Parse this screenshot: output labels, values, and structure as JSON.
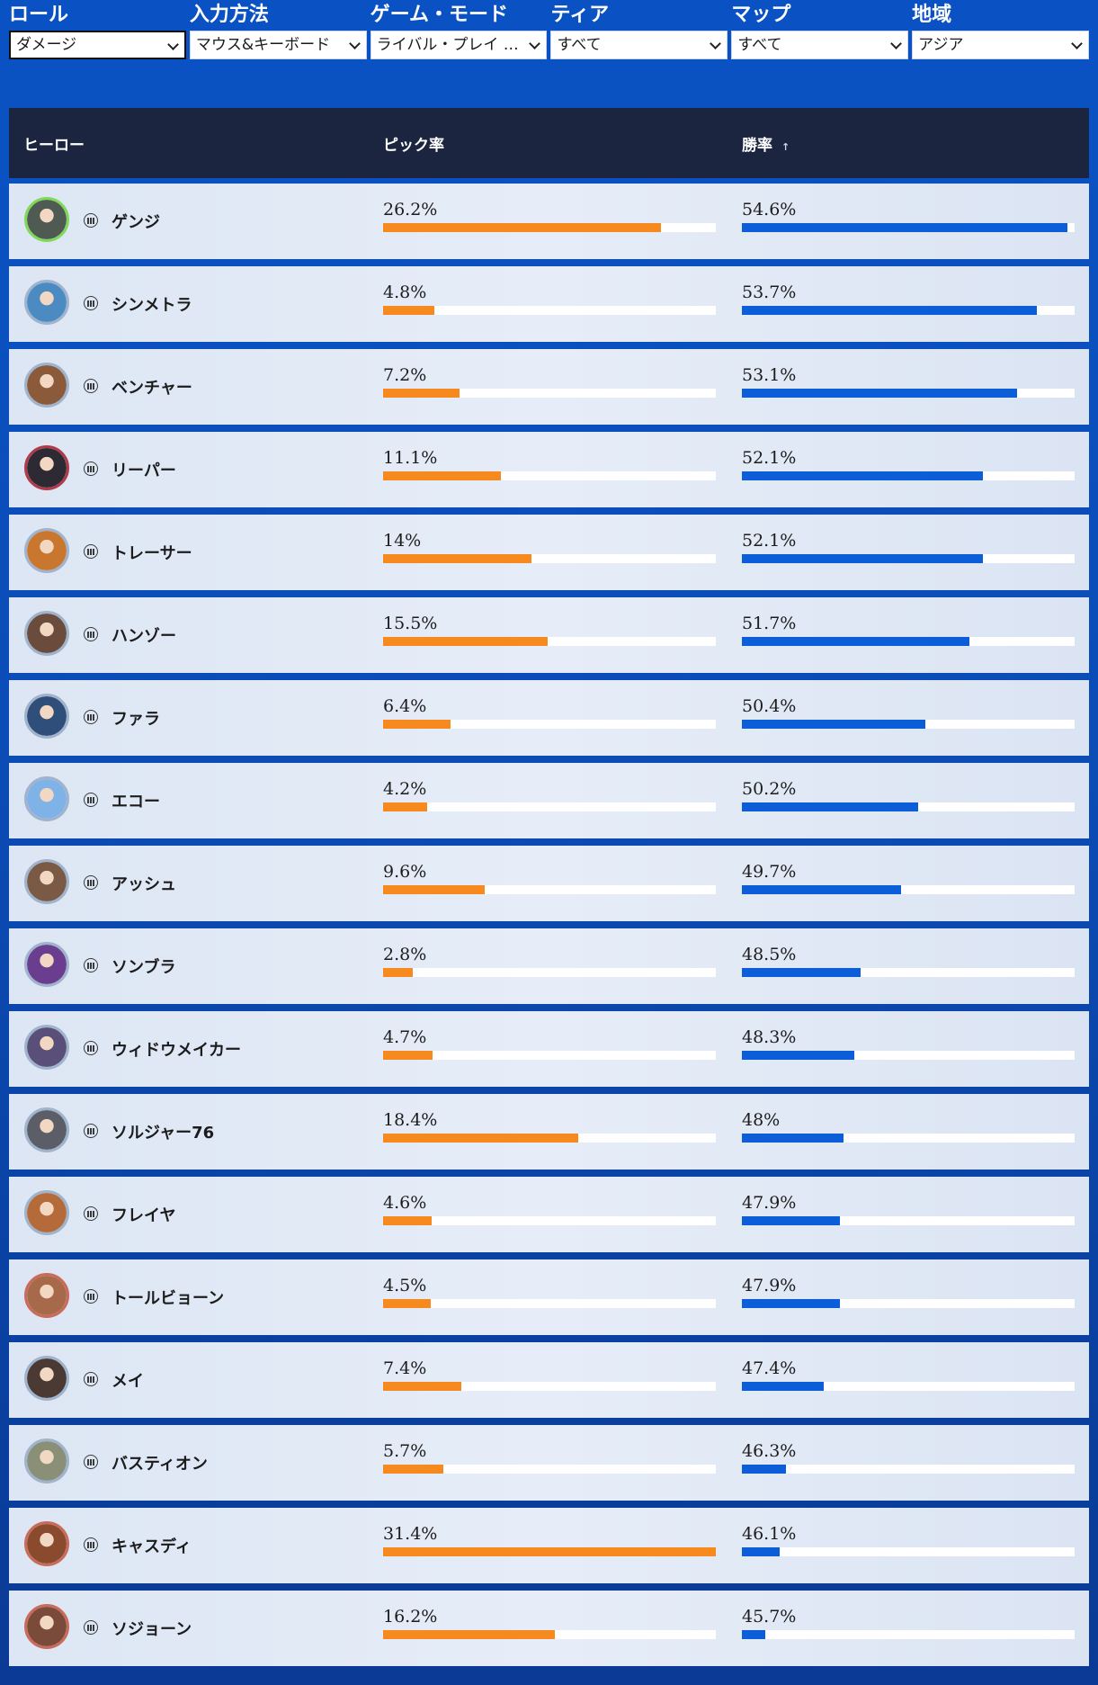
{
  "filters": [
    {
      "label": "ロール",
      "value": "ダメージ",
      "active": true
    },
    {
      "label": "入力方法",
      "value": "マウス&キーボード",
      "active": false
    },
    {
      "label": "ゲーム・モード",
      "value": "ライバル・プレイ …",
      "active": false
    },
    {
      "label": "ティア",
      "value": "すべて",
      "active": false
    },
    {
      "label": "マップ",
      "value": "すべて",
      "active": false
    },
    {
      "label": "地域",
      "value": "アジア",
      "active": false
    }
  ],
  "table": {
    "headers": {
      "hero": "ヒーロー",
      "pick": "ピック率",
      "win": "勝率",
      "sort_icon": "↑"
    },
    "rows": [
      {
        "name": "ゲンジ",
        "pick": "26.2%",
        "pick_value": 26.2,
        "win": "54.6%",
        "win_value": 54.6,
        "color": "#4f5b52",
        "ring": "#7ed957"
      },
      {
        "name": "シンメトラ",
        "pick": "4.8%",
        "pick_value": 4.8,
        "win": "53.7%",
        "win_value": 53.7,
        "color": "#4b8bc2",
        "ring": "#9fb3cc"
      },
      {
        "name": "ベンチャー",
        "pick": "7.2%",
        "pick_value": 7.2,
        "win": "53.1%",
        "win_value": 53.1,
        "color": "#8a5a3a",
        "ring": "#9fb3cc"
      },
      {
        "name": "リーパー",
        "pick": "11.1%",
        "pick_value": 11.1,
        "win": "52.1%",
        "win_value": 52.1,
        "color": "#2d2a33",
        "ring": "#b23a48"
      },
      {
        "name": "トレーサー",
        "pick": "14%",
        "pick_value": 14,
        "win": "52.1%",
        "win_value": 52.1,
        "color": "#c9772e",
        "ring": "#9fb3cc"
      },
      {
        "name": "ハンゾー",
        "pick": "15.5%",
        "pick_value": 15.5,
        "win": "51.7%",
        "win_value": 51.7,
        "color": "#6a4b3c",
        "ring": "#9fb3cc"
      },
      {
        "name": "ファラ",
        "pick": "6.4%",
        "pick_value": 6.4,
        "win": "50.4%",
        "win_value": 50.4,
        "color": "#2f4f7a",
        "ring": "#9fb3cc"
      },
      {
        "name": "エコー",
        "pick": "4.2%",
        "pick_value": 4.2,
        "win": "50.2%",
        "win_value": 50.2,
        "color": "#7fb3e8",
        "ring": "#9fb3cc"
      },
      {
        "name": "アッシュ",
        "pick": "9.6%",
        "pick_value": 9.6,
        "win": "49.7%",
        "win_value": 49.7,
        "color": "#7a5a44",
        "ring": "#9fb3cc"
      },
      {
        "name": "ソンブラ",
        "pick": "2.8%",
        "pick_value": 2.8,
        "win": "48.5%",
        "win_value": 48.5,
        "color": "#6b3d8f",
        "ring": "#9fb3cc"
      },
      {
        "name": "ウィドウメイカー",
        "pick": "4.7%",
        "pick_value": 4.7,
        "win": "48.3%",
        "win_value": 48.3,
        "color": "#5a4f78",
        "ring": "#9fb3cc"
      },
      {
        "name": "ソルジャー76",
        "pick": "18.4%",
        "pick_value": 18.4,
        "win": "48%",
        "win_value": 48,
        "color": "#5b5e66",
        "ring": "#9fb3cc"
      },
      {
        "name": "フレイヤ",
        "pick": "4.6%",
        "pick_value": 4.6,
        "win": "47.9%",
        "win_value": 47.9,
        "color": "#b56a3a",
        "ring": "#9fb3cc"
      },
      {
        "name": "トールビョーン",
        "pick": "4.5%",
        "pick_value": 4.5,
        "win": "47.9%",
        "win_value": 47.9,
        "color": "#a66a4a",
        "ring": "#c96a5a"
      },
      {
        "name": "メイ",
        "pick": "7.4%",
        "pick_value": 7.4,
        "win": "47.4%",
        "win_value": 47.4,
        "color": "#4a3a33",
        "ring": "#9fb3cc"
      },
      {
        "name": "バスティオン",
        "pick": "5.7%",
        "pick_value": 5.7,
        "win": "46.3%",
        "win_value": 46.3,
        "color": "#8a9077",
        "ring": "#9fb3cc"
      },
      {
        "name": "キャスディ",
        "pick": "31.4%",
        "pick_value": 31.4,
        "win": "46.1%",
        "win_value": 46.1,
        "color": "#8a4a2e",
        "ring": "#c96a5a"
      },
      {
        "name": "ソジョーン",
        "pick": "16.2%",
        "pick_value": 16.2,
        "win": "45.7%",
        "win_value": 45.7,
        "color": "#7a4a3a",
        "ring": "#c96a5a"
      }
    ]
  }
}
